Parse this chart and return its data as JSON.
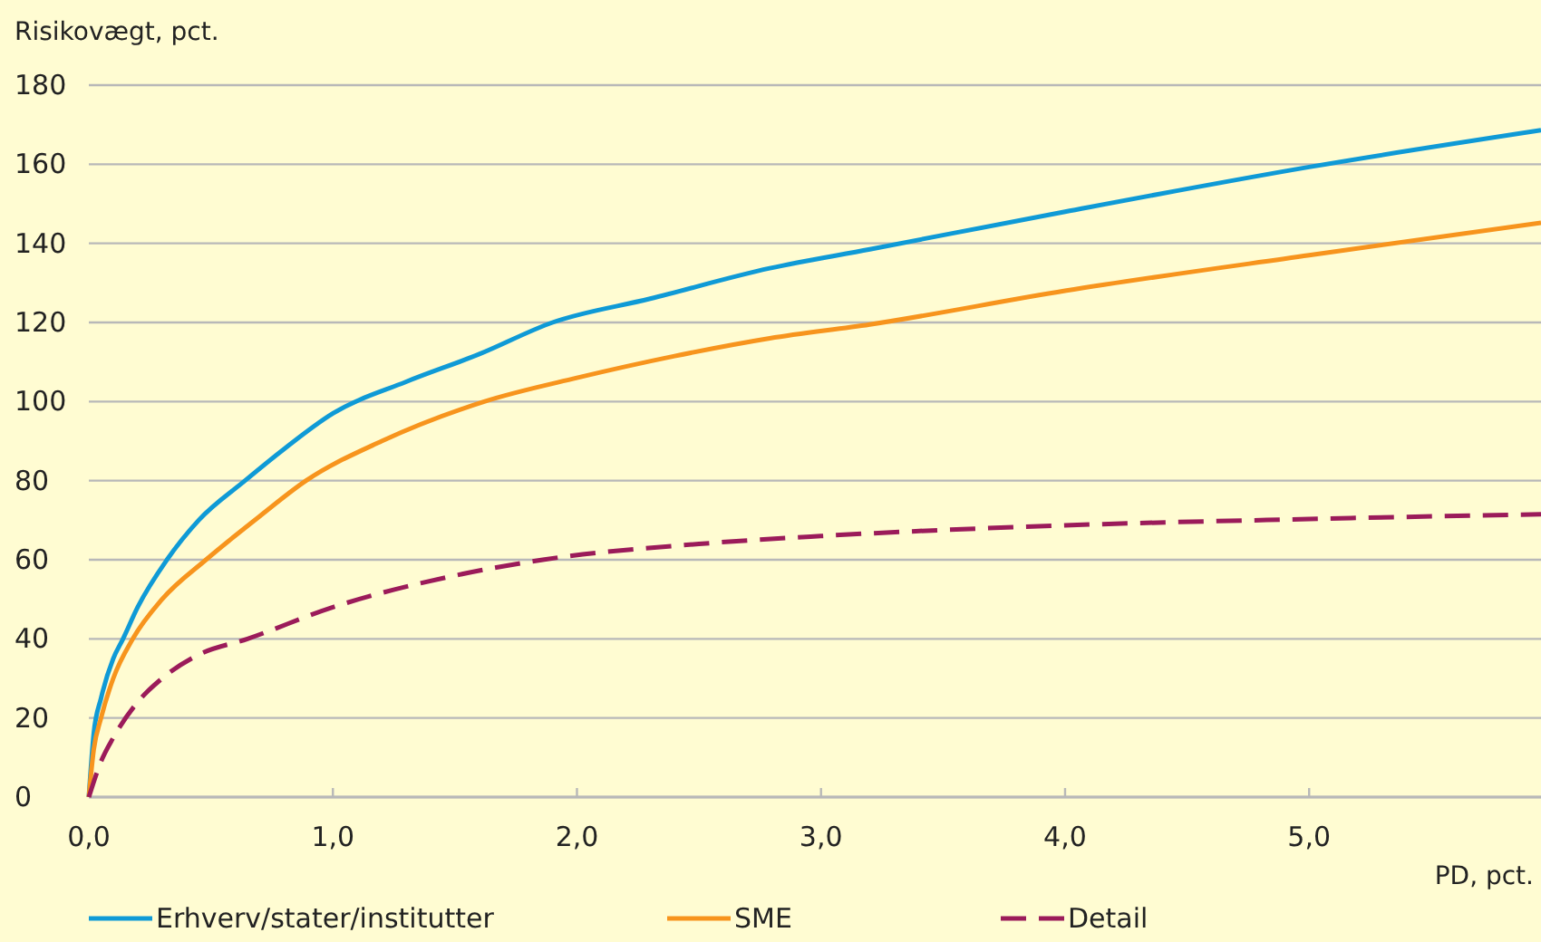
{
  "chart_data": {
    "type": "line",
    "ylabel": "Risikovægt, pct.",
    "xlabel": "PD, pct.",
    "xlim": [
      0,
      5.95
    ],
    "xticks": [
      {
        "value": 0,
        "label": "0,0"
      },
      {
        "value": 1,
        "label": "1,0"
      },
      {
        "value": 2,
        "label": "2,0"
      },
      {
        "value": 3,
        "label": "3,0"
      },
      {
        "value": 4,
        "label": "4,0"
      },
      {
        "value": 5,
        "label": "5,0"
      }
    ],
    "ylim": [
      0,
      180
    ],
    "yticks": [
      0,
      20,
      40,
      60,
      80,
      100,
      120,
      140,
      160,
      180
    ],
    "grid": "y",
    "legend": "bottom",
    "series": [
      {
        "name": "Erhverv/stater/institutter",
        "color": "#0f9ad6",
        "line_style": "solid",
        "x": [
          0,
          0.02,
          0.05,
          0.1,
          0.14,
          0.2,
          0.32,
          0.45,
          0.64,
          0.8,
          1.0,
          1.3,
          1.6,
          1.9,
          2.3,
          2.79,
          3.2,
          4.0,
          5.0,
          5.95
        ],
        "values": [
          0,
          16,
          25,
          35,
          40,
          48,
          60,
          70,
          80,
          88,
          97,
          105,
          112,
          120,
          126,
          133.7,
          138.5,
          148,
          159.3,
          168.6
        ]
      },
      {
        "name": "SME",
        "color": "#f7941d",
        "line_style": "solid",
        "x": [
          0,
          0.02,
          0.05,
          0.1,
          0.18,
          0.3,
          0.48,
          0.7,
          0.89,
          1.2,
          1.62,
          2.0,
          2.4,
          2.79,
          3.2,
          4.0,
          5.0,
          5.95
        ],
        "values": [
          0,
          12,
          20,
          30,
          40,
          50,
          60,
          71,
          80,
          90,
          100,
          106,
          111.5,
          116,
          119.5,
          128,
          137,
          145.2
        ]
      },
      {
        "name": "Detail",
        "color": "#9b1b5a",
        "line_style": "dashed",
        "x": [
          0,
          0.05,
          0.1,
          0.2,
          0.3,
          0.45,
          0.65,
          1.0,
          1.5,
          1.86,
          2.5,
          3.0,
          4.0,
          5.0,
          5.95
        ],
        "values": [
          0,
          9,
          15,
          24,
          30,
          36,
          40,
          48,
          56,
          60,
          64,
          66,
          68.7,
          70.3,
          71.5
        ]
      }
    ]
  }
}
